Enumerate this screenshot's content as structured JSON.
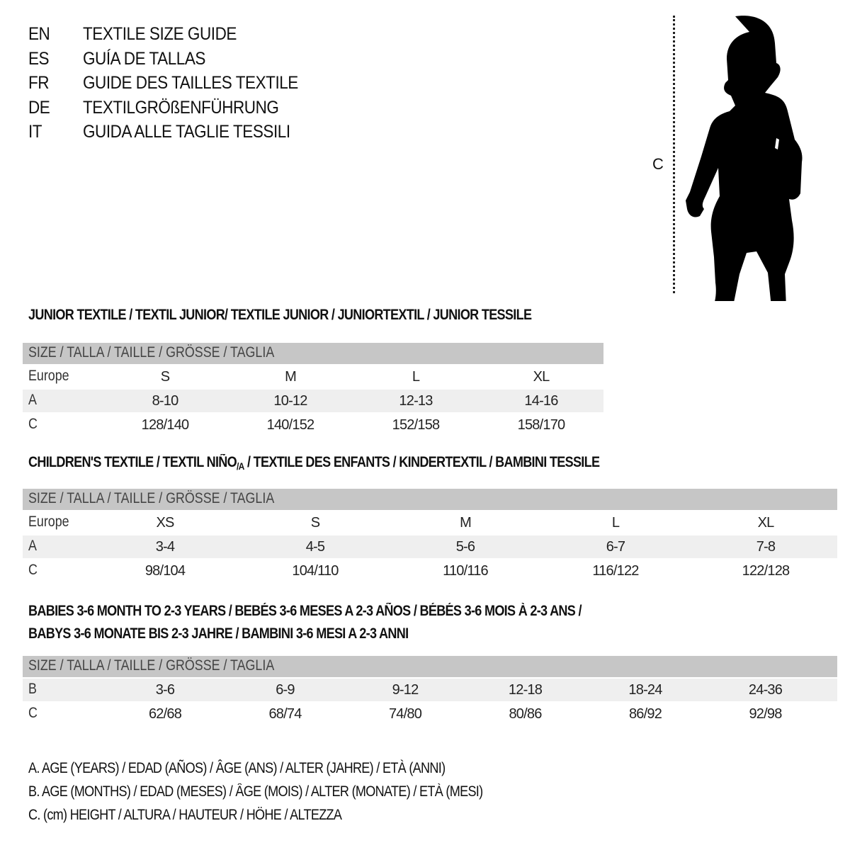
{
  "languages": [
    {
      "code": "EN",
      "title": "TEXTILE SIZE GUIDE"
    },
    {
      "code": "ES",
      "title": "GUÍA DE TALLAS"
    },
    {
      "code": "FR",
      "title": "GUIDE DES TAILLES TEXTILE"
    },
    {
      "code": "DE",
      "title": "TEXTILGRÖßENFÜHRUNG"
    },
    {
      "code": "IT",
      "title": "GUIDA ALLE TAGLIE TESSILI"
    }
  ],
  "figure": {
    "measure_label": "C",
    "icon": "child-silhouette"
  },
  "colors": {
    "header_row": "#c6c6c6",
    "shaded_row": "#efefef"
  },
  "junior": {
    "heading": "JUNIOR TEXTILE / TEXTIL JUNIOR/ TEXTILE JUNIOR / JUNIORTEXTIL / JUNIOR TESSILE",
    "header": "SIZE / TALLA / TAILLE / GRÖSSE / TAGLIA",
    "rows": [
      {
        "label": "Europe",
        "values": [
          "S",
          "M",
          "L",
          "XL"
        ]
      },
      {
        "label": "A",
        "values": [
          "8-10",
          "10-12",
          "12-13",
          "14-16"
        ]
      },
      {
        "label": "C",
        "values": [
          "128/140",
          "140/152",
          "152/158",
          "158/170"
        ]
      }
    ]
  },
  "children": {
    "heading": "CHILDREN'S TEXTILE / TEXTIL NIÑO",
    "heading_sub": "/A",
    "heading_rest": " / TEXTILE DES ENFANTS / KINDERTEXTIL / BAMBINI TESSILE",
    "header": "SIZE / TALLA / TAILLE / GRÖSSE / TAGLIA",
    "rows": [
      {
        "label": "Europe",
        "values": [
          "XS",
          "S",
          "M",
          "L",
          "XL"
        ]
      },
      {
        "label": "A",
        "values": [
          "3-4",
          "4-5",
          "5-6",
          "6-7",
          "7-8"
        ]
      },
      {
        "label": "C",
        "values": [
          "98/104",
          "104/110",
          "110/116",
          "116/122",
          "122/128"
        ]
      }
    ]
  },
  "babies": {
    "heading_line1": "BABIES 3-6 MONTH TO 2-3 YEARS / BEBÉS 3-6 MESES A 2-3 AÑOS / BÉBÉS 3-6 MOIS À 2-3 ANS /",
    "heading_line2": "BABYS 3-6 MONATE BIS 2-3 JAHRE / BAMBINI 3-6 MESI A 2-3 ANNI",
    "header": "SIZE / TALLA / TAILLE / GRÖSSE / TAGLIA",
    "rows": [
      {
        "label": "B",
        "values": [
          "3-6",
          "6-9",
          "9-12",
          "12-18",
          "18-24",
          "24-36"
        ]
      },
      {
        "label": "C",
        "values": [
          "62/68",
          "68/74",
          "74/80",
          "80/86",
          "86/92",
          "92/98"
        ]
      }
    ]
  },
  "legend": [
    "A. AGE (YEARS) / EDAD (AÑOS) / ÂGE (ANS) / ALTER (JAHRE) / ETÀ (ANNI)",
    "B. AGE (MONTHS) / EDAD (MESES) / ÂGE (MOIS) / ALTER (MONATE) / ETÀ (MESI)",
    "C. (cm) HEIGHT / ALTURA / HAUTEUR / HÖHE / ALTEZZA"
  ]
}
